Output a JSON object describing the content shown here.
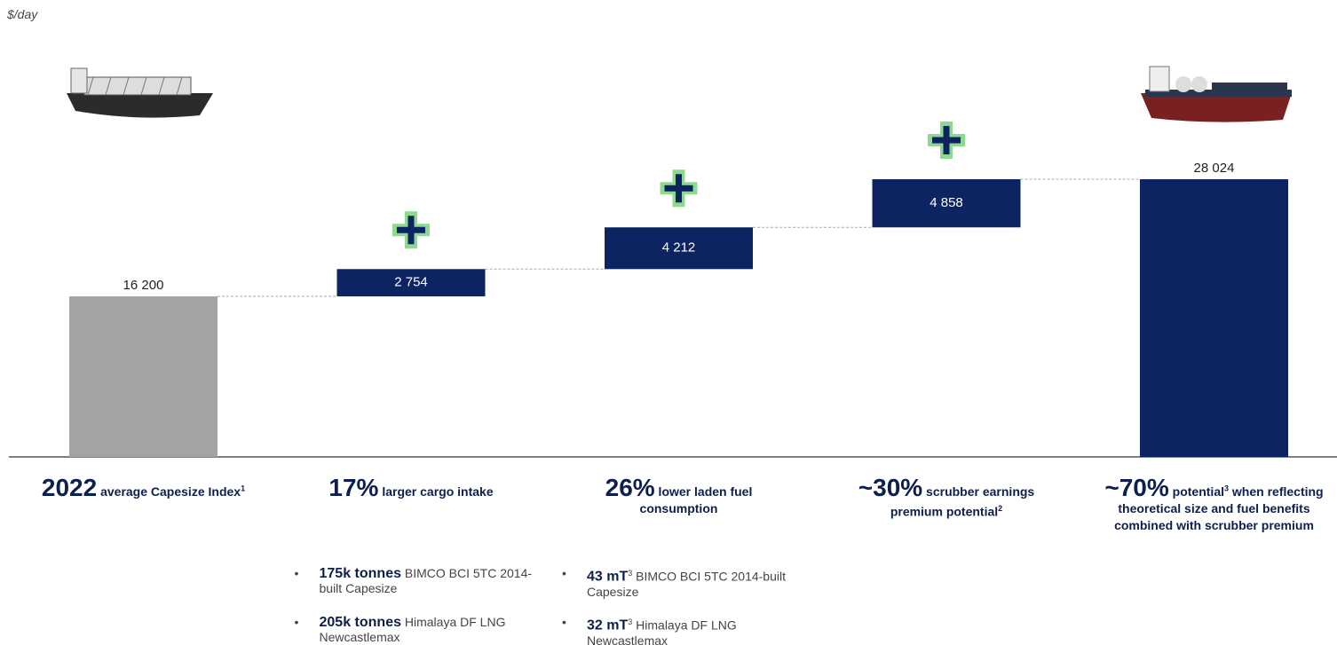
{
  "chart_data": {
    "type": "waterfall",
    "unit_label": "$/day",
    "measures": [
      "total",
      "relative",
      "relative",
      "relative",
      "total"
    ],
    "values": [
      16200,
      2754,
      4212,
      4858,
      28024
    ],
    "value_labels": [
      "16 200",
      "2 754",
      "4 212",
      "4 858",
      "28 024"
    ],
    "colors": [
      "#a3a3a3",
      "#0c2461",
      "#0c2461",
      "#0c2461",
      "#0c2461"
    ],
    "captions": [
      [
        {
          "t": "2022",
          "s": "big"
        },
        {
          "t": " average Capesize Index",
          "s": "bold"
        },
        {
          "t": "1",
          "s": "sup"
        }
      ],
      [
        {
          "t": "17%",
          "s": "big"
        },
        {
          "t": " larger cargo intake",
          "s": "bold"
        }
      ],
      [
        {
          "t": "26%",
          "s": "big"
        },
        {
          "t": " lower laden fuel consumption",
          "s": "bold"
        }
      ],
      [
        {
          "t": "~30%",
          "s": "big"
        },
        {
          "t": " scrubber earnings premium potential",
          "s": "bold"
        },
        {
          "t": "2",
          "s": "sup"
        }
      ],
      [
        {
          "t": "~70%",
          "s": "big"
        },
        {
          "t": " potential",
          "s": "bold"
        },
        {
          "t": "3",
          "s": "sup"
        },
        {
          "t": " when reflecting theoretical size and fuel benefits combined with scrubber premium",
          "s": "bold"
        }
      ]
    ],
    "bullets": [
      [],
      [
        [
          {
            "t": "175k tonnes",
            "s": "bold"
          },
          {
            "t": " BIMCO BCI 5TC 2014-built Capesize",
            "s": "plain"
          }
        ],
        [
          {
            "t": "205k tonnes",
            "s": "bold"
          },
          {
            "t": " Himalaya DF LNG Newcastlemax",
            "s": "plain"
          }
        ]
      ],
      [
        [
          {
            "t": "43 mT",
            "s": "bold"
          },
          {
            "t": "3",
            "s": "sup"
          },
          {
            "t": " BIMCO BCI 5TC 2014-built Capesize",
            "s": "plain"
          }
        ],
        [
          {
            "t": "32 mT",
            "s": "bold"
          },
          {
            "t": "3",
            "s": "sup"
          },
          {
            "t": " Himalaya DF LNG Newcastlemax",
            "s": "plain"
          }
        ]
      ],
      [],
      []
    ]
  }
}
